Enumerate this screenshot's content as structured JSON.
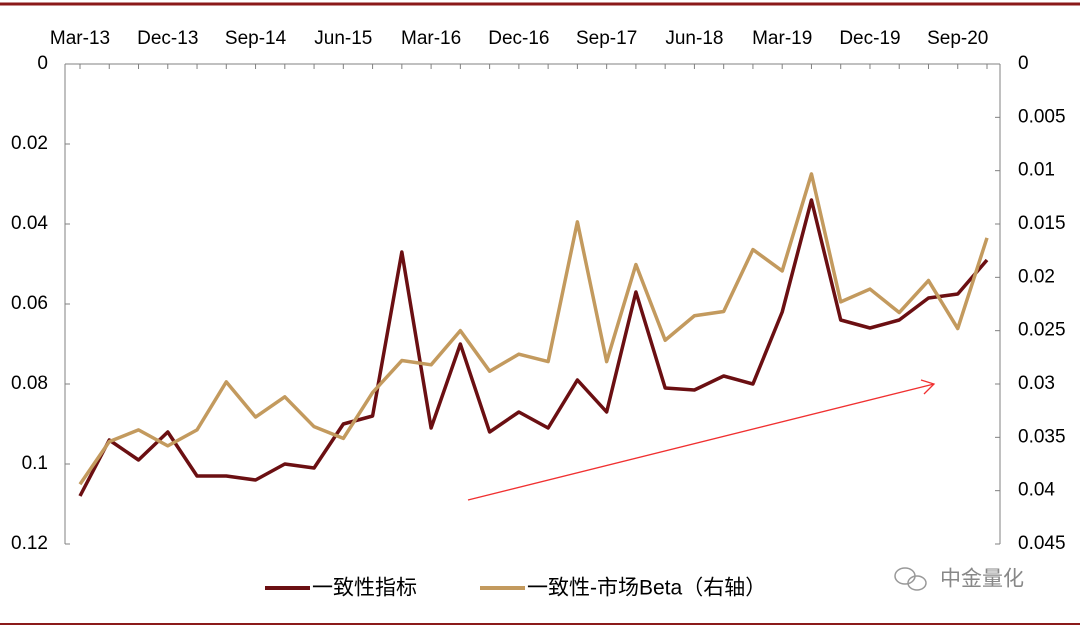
{
  "chart_data": {
    "type": "line",
    "categories": [
      "Mar-13",
      null,
      null,
      "Dec-13",
      null,
      null,
      "Sep-14",
      null,
      null,
      "Jun-15",
      null,
      null,
      "Mar-16",
      null,
      null,
      "Dec-16",
      null,
      null,
      "Sep-17",
      null,
      null,
      "Jun-18",
      null,
      null,
      "Mar-19",
      null,
      null,
      "Dec-19",
      null,
      null,
      "Sep-20",
      null
    ],
    "series": [
      {
        "name": "一致性指标",
        "color": "#6b0f12",
        "axis": "y",
        "values": [
          0.108,
          0.094,
          0.099,
          0.092,
          0.103,
          0.103,
          0.104,
          0.1,
          0.101,
          0.09,
          0.088,
          0.047,
          0.091,
          0.07,
          0.092,
          0.087,
          0.091,
          0.079,
          0.087,
          0.057,
          0.081,
          0.0815,
          0.078,
          0.08,
          0.062,
          0.034,
          0.064,
          0.066,
          0.064,
          0.0585,
          0.0575,
          0.049
        ]
      },
      {
        "name": "一致性-市场Beta（右轴）",
        "color": "#c39a5e",
        "axis": "y2",
        "values": [
          0.0394,
          0.0354,
          0.0343,
          0.0358,
          0.0343,
          0.0298,
          0.0331,
          0.0312,
          0.034,
          0.0351,
          0.0308,
          0.0278,
          0.0282,
          0.025,
          0.0288,
          0.0272,
          0.0279,
          0.0148,
          0.0279,
          0.0188,
          0.0259,
          0.0236,
          0.0232,
          0.0174,
          0.0194,
          0.0103,
          0.0223,
          0.0211,
          0.0233,
          0.0203,
          0.0248,
          0.0163
        ]
      }
    ],
    "ylim": [
      0,
      0.12
    ],
    "yticks": [
      0,
      0.02,
      0.04,
      0.06,
      0.08,
      0.1,
      0.12
    ],
    "y_inverted": true,
    "y2lim": [
      0,
      0.045
    ],
    "y2ticks": [
      0,
      0.005,
      0.01,
      0.015,
      0.02,
      0.025,
      0.03,
      0.035,
      0.04,
      0.045
    ],
    "y2_inverted": true,
    "watermark": "中金量化"
  }
}
